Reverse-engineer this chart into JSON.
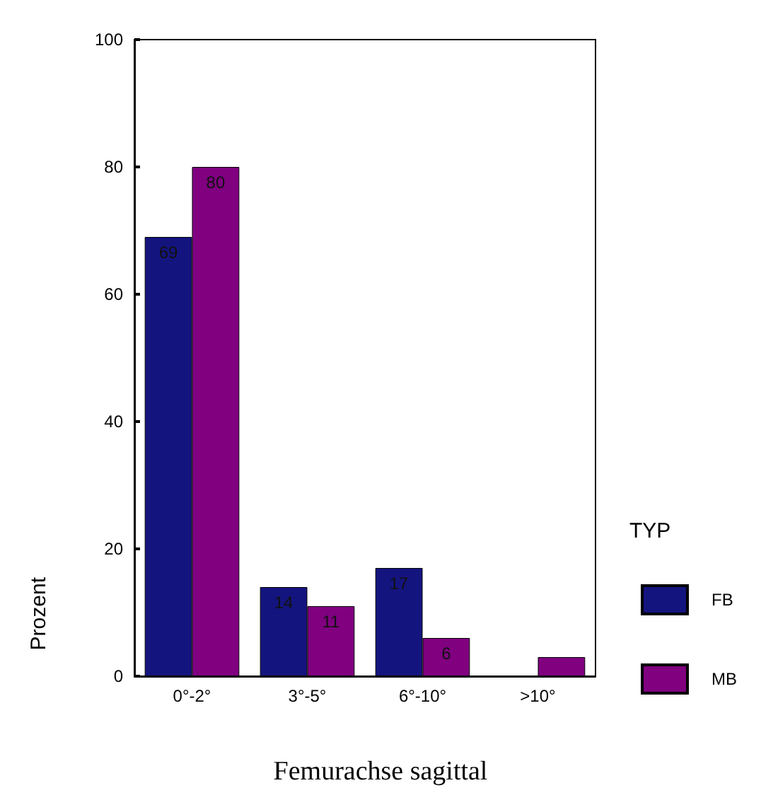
{
  "chart_data": {
    "type": "bar",
    "xlabel": "Femurachse sagittal",
    "ylabel": "Prozent",
    "legend_title": "TYP",
    "categories": [
      "0°-2°",
      "3°-5°",
      "6°-10°",
      ">10°"
    ],
    "series": [
      {
        "name": "FB",
        "color": "#14147f",
        "values": [
          69,
          14,
          17,
          null
        ],
        "value_labels": [
          "69",
          "14",
          "17",
          null
        ]
      },
      {
        "name": "MB",
        "color": "#800080",
        "values": [
          80,
          11,
          6,
          3
        ],
        "value_labels": [
          "80",
          "11",
          "6",
          null
        ]
      }
    ],
    "ylim": [
      0,
      100
    ],
    "yticks": [
      0,
      20,
      40,
      60,
      80,
      100
    ],
    "grid": false,
    "legend": "right"
  }
}
